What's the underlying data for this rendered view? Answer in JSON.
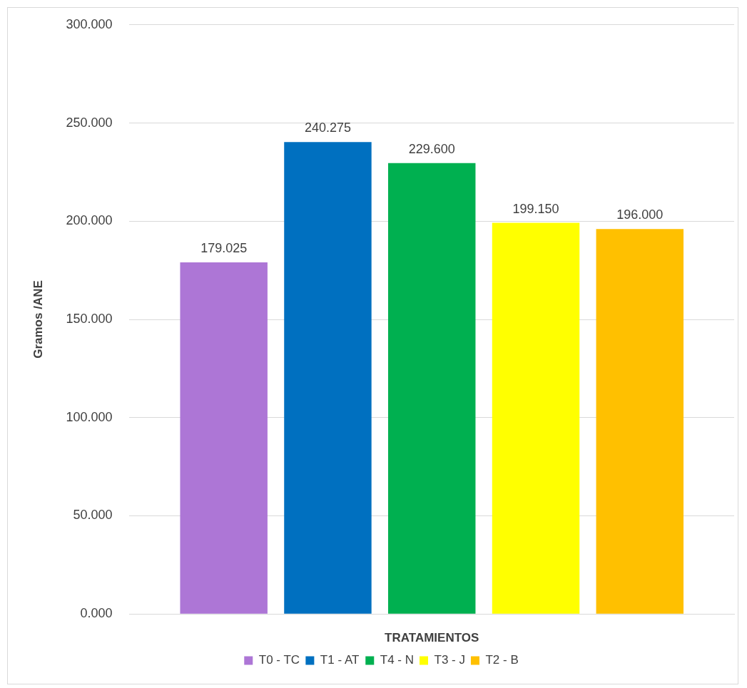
{
  "chart_data": {
    "type": "bar",
    "xlabel": "TRATAMIENTOS",
    "ylabel": "Gramos /ANE",
    "categories": [
      null
    ],
    "series": [
      {
        "name": "T0 - TC",
        "color": "#ad76d6",
        "values": [
          179.025
        ],
        "value_labels": [
          "179.025"
        ]
      },
      {
        "name": "T1 - AT",
        "color": "#0070c0",
        "values": [
          240.275
        ],
        "value_labels": [
          "240.275"
        ]
      },
      {
        "name": "T4 - N",
        "color": "#00b050",
        "values": [
          229.6
        ],
        "value_labels": [
          "229.600"
        ]
      },
      {
        "name": "T3 - J",
        "color": "#ffff00",
        "values": [
          199.15
        ],
        "value_labels": [
          "199.150"
        ]
      },
      {
        "name": "T2 - B",
        "color": "#ffc000",
        "values": [
          196
        ],
        "value_labels": [
          "196.000"
        ]
      }
    ],
    "ylim": [
      0,
      300
    ],
    "yticks": [
      {
        "value": 0,
        "label": "0.000"
      },
      {
        "value": 50,
        "label": "50.000"
      },
      {
        "value": 100,
        "label": "100.000"
      },
      {
        "value": 150,
        "label": "150.000"
      },
      {
        "value": 200,
        "label": "200.000"
      },
      {
        "value": 250,
        "label": "250.000"
      },
      {
        "value": 300,
        "label": "300.000"
      }
    ],
    "grid": "y",
    "legend": "bottom"
  }
}
